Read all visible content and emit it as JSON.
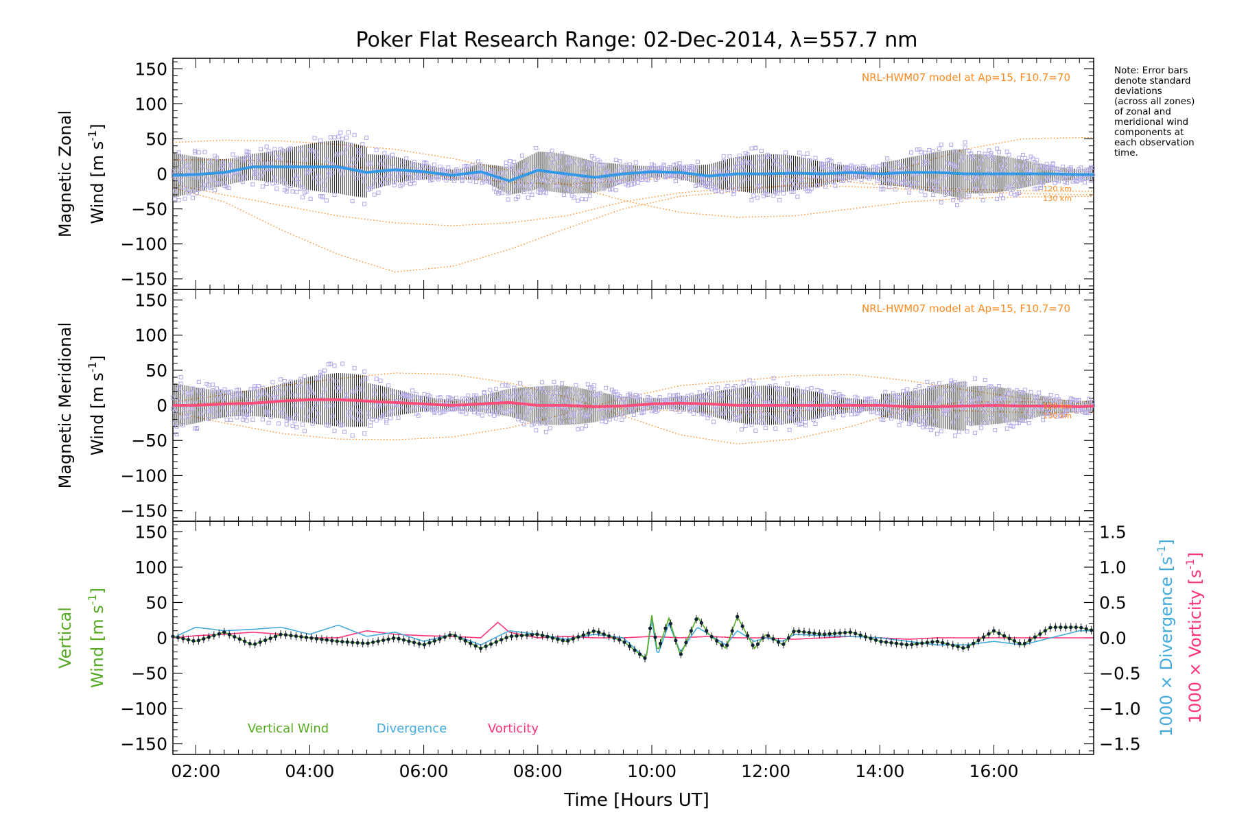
{
  "title": "Poker Flat Research Range: 02-Dec-2014, λ=557.7 nm",
  "note": [
    "Note: Error bars",
    "denote standard",
    "deviations",
    "(across all zones)",
    "of zonal and",
    "meridional wind",
    "components at",
    "each observation",
    "time."
  ],
  "xlabel": "Time [Hours UT]",
  "xticks": [
    "02:00",
    "04:00",
    "06:00",
    "08:00",
    "10:00",
    "12:00",
    "14:00",
    "16:00"
  ],
  "colors": {
    "zonal": "#3399e6",
    "meridional": "#ff4d7a",
    "model": "#ff8a1f",
    "scatter": "#b0a8e6",
    "vertical": "#55aa22",
    "divergence": "#44aadd",
    "vorticity": "#ff3377",
    "errorbar": "#222222"
  },
  "chart_data": [
    {
      "type": "line",
      "panel": "zonal",
      "ylabel_line1": "Magnetic Zonal",
      "ylabel_line2": "Wind [m s",
      "ylabel_sup": "-1",
      "ylabel_close": "]",
      "ylim": [
        -165,
        165
      ],
      "yticks": [
        150,
        100,
        50,
        0,
        -50,
        -100,
        -150
      ],
      "xlim": [
        1.6,
        17.75
      ],
      "annotation": "NRL-HWM07 model at Ap=15, F10.7=70",
      "model_labels": [
        "120 km",
        "130 km"
      ],
      "series": [
        {
          "kind": "mean",
          "x": [
            1.6,
            2.0,
            2.5,
            3.0,
            3.5,
            4.0,
            4.5,
            5.0,
            5.5,
            6.0,
            6.5,
            7.0,
            7.5,
            8.0,
            8.5,
            9.0,
            9.5,
            10.0,
            10.5,
            11.0,
            11.5,
            12.0,
            12.5,
            13.0,
            13.5,
            14.0,
            14.5,
            15.0,
            15.5,
            16.0,
            16.5,
            17.0,
            17.5,
            17.75
          ],
          "y": [
            -2,
            -1,
            2,
            10,
            10,
            10,
            10,
            2,
            6,
            3,
            -2,
            3,
            -10,
            5,
            0,
            -5,
            0,
            3,
            2,
            -3,
            0,
            0,
            1,
            0,
            2,
            0,
            2,
            2,
            0,
            0,
            0,
            0,
            -1,
            -1
          ]
        },
        {
          "kind": "model",
          "x": [
            1.6,
            2.5,
            3.5,
            4.5,
            5.5,
            6.5,
            7.5,
            8.5,
            9.5,
            10.5,
            11.5,
            12.5,
            13.5,
            14.5,
            15.5,
            16.5,
            17.75
          ],
          "y": [
            -20,
            -40,
            -80,
            -115,
            -140,
            -132,
            -108,
            -78,
            -50,
            -32,
            -25,
            -15,
            -8,
            10,
            35,
            50,
            52
          ]
        },
        {
          "kind": "model",
          "x": [
            1.6,
            2.5,
            3.5,
            4.5,
            5.5,
            6.5,
            7.5,
            8.5,
            9.5,
            10.5,
            11.5,
            12.5,
            13.5,
            14.5,
            15.5,
            16.5,
            17.75
          ],
          "y": [
            -15,
            -30,
            -45,
            -60,
            -70,
            -74,
            -70,
            -60,
            -40,
            -27,
            -20,
            -17,
            -18,
            -22,
            -25,
            -28,
            -30
          ]
        },
        {
          "kind": "model",
          "x": [
            1.6,
            2.5,
            3.5,
            4.5,
            5.5,
            6.5,
            7.5,
            8.5,
            9.5,
            10.5,
            11.5,
            12.5,
            13.5,
            14.5,
            15.5,
            16.5,
            17.75
          ],
          "y": [
            45,
            48,
            47,
            42,
            35,
            22,
            5,
            -15,
            -38,
            -55,
            -62,
            -60,
            -50,
            -40,
            -35,
            -33,
            -32
          ]
        },
        {
          "kind": "model",
          "x": [
            1.6,
            2.5,
            3.5,
            4.5,
            5.5,
            6.5,
            7.5,
            8.5,
            9.5,
            10.5,
            11.5,
            12.5,
            13.5,
            14.5,
            15.5,
            16.5,
            17.75
          ],
          "y": [
            20,
            20,
            18,
            12,
            5,
            -5,
            -12,
            -15,
            -10,
            -5,
            0,
            -5,
            -12,
            -18,
            -22,
            -24,
            -25
          ]
        }
      ]
    },
    {
      "type": "line",
      "panel": "meridional",
      "ylabel_line1": "Magnetic Meridional",
      "ylabel_line2": "Wind [m s",
      "ylabel_sup": "-1",
      "ylabel_close": "]",
      "ylim": [
        -165,
        165
      ],
      "yticks": [
        150,
        100,
        50,
        0,
        -50,
        -100,
        -150
      ],
      "xlim": [
        1.6,
        17.75
      ],
      "annotation": "NRL-HWM07 model at Ap=15, F10.7=70",
      "model_labels": [
        "120 km",
        "130 km"
      ],
      "series": [
        {
          "kind": "mean",
          "x": [
            1.6,
            2.0,
            2.5,
            3.0,
            3.5,
            4.0,
            4.5,
            5.0,
            5.5,
            6.0,
            6.5,
            7.0,
            7.5,
            8.0,
            8.5,
            9.0,
            9.5,
            10.0,
            10.5,
            11.0,
            11.5,
            12.0,
            12.5,
            13.0,
            13.5,
            14.0,
            14.5,
            15.0,
            15.5,
            16.0,
            16.5,
            17.0,
            17.5,
            17.75
          ],
          "y": [
            0,
            0,
            2,
            3,
            6,
            8,
            8,
            6,
            4,
            2,
            0,
            2,
            4,
            0,
            0,
            -2,
            -1,
            2,
            3,
            2,
            0,
            0,
            0,
            0,
            0,
            0,
            -2,
            -2,
            -1,
            0,
            -1,
            -1,
            -2,
            -1
          ]
        },
        {
          "kind": "model",
          "x": [
            1.6,
            2.5,
            3.5,
            4.5,
            5.5,
            6.5,
            7.5,
            8.5,
            9.5,
            10.5,
            11.5,
            12.5,
            13.5,
            14.5,
            15.5,
            16.5,
            17.75
          ],
          "y": [
            5,
            15,
            28,
            38,
            46,
            44,
            32,
            12,
            -15,
            -42,
            -55,
            -48,
            -30,
            -5,
            5,
            5,
            2
          ]
        },
        {
          "kind": "model",
          "x": [
            1.6,
            2.5,
            3.5,
            4.5,
            5.5,
            6.5,
            7.5,
            8.5,
            9.5,
            10.5,
            11.5,
            12.5,
            13.5,
            14.5,
            15.5,
            16.5,
            17.75
          ],
          "y": [
            -10,
            -25,
            -40,
            -48,
            -49,
            -45,
            -32,
            -12,
            10,
            28,
            35,
            42,
            44,
            35,
            22,
            10,
            5
          ]
        },
        {
          "kind": "model",
          "x": [
            1.6,
            2.5,
            3.5,
            4.5,
            5.5,
            6.5,
            7.5,
            8.5,
            9.5,
            10.5,
            11.5,
            12.5,
            13.5,
            14.5,
            15.5,
            16.5,
            17.75
          ],
          "y": [
            0,
            5,
            10,
            10,
            8,
            5,
            2,
            -2,
            -5,
            -8,
            -10,
            -8,
            -5,
            -5,
            -8,
            -10,
            -10
          ]
        }
      ]
    },
    {
      "type": "line",
      "panel": "vertical",
      "ylabel_line1": "Vertical",
      "ylabel_line2": "Wind [m s",
      "ylabel_sup": "-1",
      "ylabel_close": "]",
      "ylim": [
        -165,
        165
      ],
      "yticks": [
        150,
        100,
        50,
        0,
        -50,
        -100,
        -150
      ],
      "xlim": [
        1.6,
        17.75
      ],
      "y2lim": [
        -1.65,
        1.65
      ],
      "y2ticks": [
        "1.5",
        "1.0",
        "0.5",
        "0.0",
        "−0.5",
        "−1.0",
        "−1.5"
      ],
      "y2ticks_values": [
        1.5,
        1.0,
        0.5,
        0.0,
        -0.5,
        -1.0,
        -1.5
      ],
      "y2label_div": "1000 × Divergence [s",
      "y2label_vor": "1000 × Vorticity [s",
      "y2label_sup": "-1",
      "y2label_close": "]",
      "legend": [
        "Vertical Wind",
        "Divergence",
        "Vorticity"
      ],
      "series": [
        {
          "name": "Vertical Wind",
          "x": [
            1.6,
            2.0,
            2.5,
            3.0,
            3.5,
            4.0,
            4.5,
            5.0,
            5.5,
            6.0,
            6.5,
            7.0,
            7.5,
            8.0,
            8.5,
            9.0,
            9.5,
            9.9,
            10.0,
            10.1,
            10.3,
            10.5,
            10.8,
            11.0,
            11.3,
            11.5,
            11.8,
            12.0,
            12.3,
            12.5,
            13.0,
            13.5,
            14.0,
            14.5,
            15.0,
            15.5,
            16.0,
            16.5,
            17.0,
            17.5,
            17.75
          ],
          "y": [
            2,
            -5,
            8,
            -10,
            5,
            0,
            -5,
            -8,
            0,
            -10,
            5,
            -15,
            2,
            5,
            -5,
            10,
            -5,
            -30,
            32,
            -20,
            28,
            -25,
            30,
            5,
            -15,
            30,
            -15,
            5,
            -10,
            10,
            5,
            8,
            -5,
            -10,
            -5,
            -15,
            10,
            -10,
            15,
            15,
            10
          ]
        },
        {
          "name": "Divergence",
          "x": [
            1.6,
            2.0,
            2.5,
            3.0,
            3.5,
            4.0,
            4.5,
            5.0,
            5.5,
            6.0,
            6.5,
            7.0,
            7.5,
            8.0,
            8.5,
            9.0,
            9.5,
            9.9,
            10.0,
            10.1,
            10.3,
            10.5,
            10.8,
            11.0,
            11.3,
            11.5,
            11.8,
            12.0,
            12.3,
            12.5,
            13.0,
            13.5,
            14.0,
            14.5,
            15.0,
            15.5,
            16.0,
            16.5,
            17.0,
            17.5,
            17.75
          ],
          "y": [
            0.0,
            0.15,
            0.1,
            0.12,
            0.15,
            0.05,
            0.18,
            0.02,
            0.08,
            -0.05,
            0.05,
            -0.1,
            0.1,
            0.05,
            -0.02,
            0.05,
            0.0,
            -0.3,
            0.25,
            -0.25,
            0.2,
            -0.2,
            0.15,
            0.05,
            -0.1,
            0.1,
            -0.05,
            0.0,
            -0.05,
            0.05,
            0.03,
            0.02,
            0.0,
            -0.05,
            -0.1,
            -0.1,
            -0.05,
            -0.1,
            0.0,
            0.1,
            0.1
          ]
        },
        {
          "name": "Vorticity",
          "x": [
            1.6,
            2.0,
            2.5,
            3.0,
            3.5,
            4.0,
            4.5,
            5.0,
            5.5,
            6.0,
            6.5,
            7.0,
            7.3,
            7.5,
            8.0,
            8.5,
            9.0,
            9.5,
            10.0,
            10.5,
            11.0,
            11.5,
            12.0,
            12.5,
            13.0,
            13.5,
            14.0,
            14.5,
            15.0,
            15.5,
            16.0,
            16.5,
            17.0,
            17.5,
            17.75
          ],
          "y": [
            0.0,
            0.03,
            0.05,
            0.08,
            0.05,
            0.0,
            0.0,
            0.1,
            0.05,
            0.03,
            0.02,
            0.0,
            0.22,
            0.08,
            0.0,
            0.02,
            0.0,
            0.0,
            0.02,
            0.0,
            0.02,
            0.0,
            0.0,
            -0.02,
            0.0,
            0.02,
            0.0,
            -0.02,
            0.0,
            0.0,
            0.0,
            0.0,
            0.0,
            0.0,
            0.0
          ]
        }
      ]
    }
  ]
}
